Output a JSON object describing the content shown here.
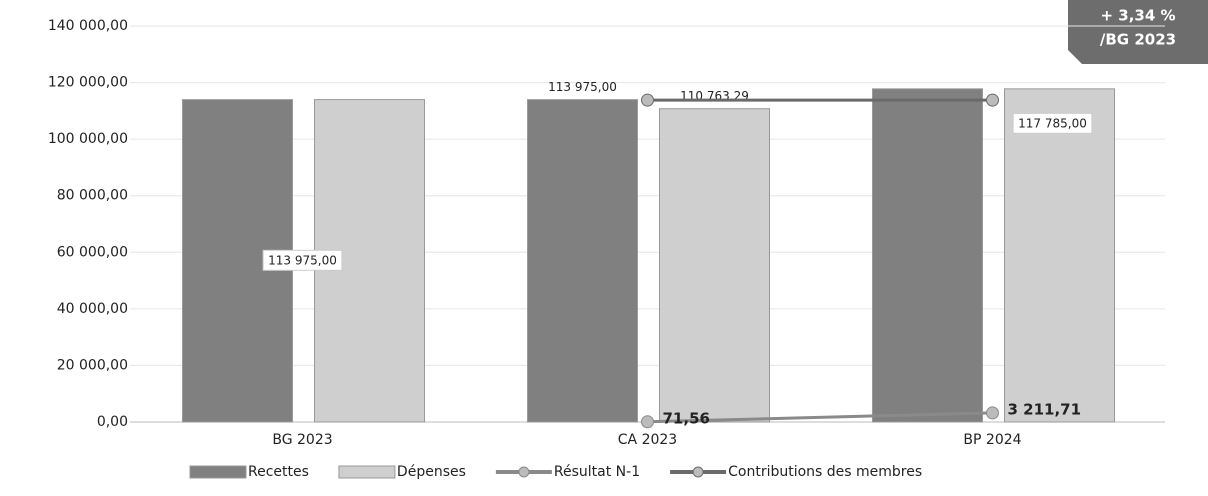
{
  "chart_data": {
    "type": "bar",
    "categories": [
      "BG 2023",
      "CA 2023",
      "BP 2024"
    ],
    "series": [
      {
        "name": "Recettes",
        "type": "bar",
        "color": "#808080",
        "values": [
          113975,
          113975,
          117785
        ],
        "value_labels": [
          "113 975,00",
          "113 975,00",
          "117 785,00"
        ]
      },
      {
        "name": "Dépenses",
        "type": "bar",
        "color": "#cfcfcf",
        "values": [
          113975,
          110763.29,
          117785
        ],
        "value_labels": [
          null,
          "110 763,29",
          null
        ]
      },
      {
        "name": "Résultat N-1",
        "type": "line",
        "color": "#8a8a8a",
        "values": [
          null,
          71.56,
          3211.71
        ],
        "value_labels": [
          null,
          "71,56",
          "3 211,71"
        ]
      },
      {
        "name": "Contributions des membres",
        "type": "line",
        "color": "#6a6a6a",
        "values": [
          null,
          113800,
          113800
        ]
      }
    ],
    "ylim": [
      0,
      140000
    ],
    "yticks": [
      {
        "value": 0,
        "label": "0,00"
      },
      {
        "value": 20000,
        "label": "20 000,00"
      },
      {
        "value": 40000,
        "label": "40 000,00"
      },
      {
        "value": 60000,
        "label": "60 000,00"
      },
      {
        "value": 80000,
        "label": "80 000,00"
      },
      {
        "value": 100000,
        "label": "100 000,00"
      },
      {
        "value": 120000,
        "label": "120 000,00"
      },
      {
        "value": 140000,
        "label": "140 000,00"
      }
    ],
    "grid": true,
    "legend": "bottom",
    "annotation": [
      "+ 3,34 %",
      "/BG 2023"
    ]
  }
}
